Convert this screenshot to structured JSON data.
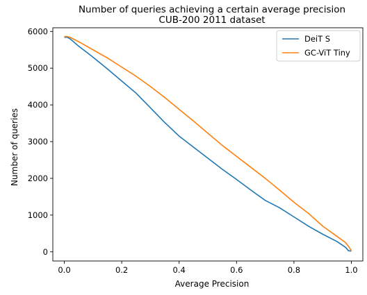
{
  "chart_data": {
    "type": "line",
    "title": "Number of queries achieving a certain average precision",
    "subtitle": "CUB-200 2011 dataset",
    "xlabel": "Average Precision",
    "ylabel": "Number of queries",
    "xlim": [
      -0.04,
      1.04
    ],
    "ylim": [
      -250,
      6100
    ],
    "xticks": [
      0.0,
      0.2,
      0.4,
      0.6,
      0.8,
      1.0
    ],
    "xtick_labels": [
      "0.0",
      "0.2",
      "0.4",
      "0.6",
      "0.8",
      "1.0"
    ],
    "yticks": [
      0,
      1000,
      2000,
      3000,
      4000,
      5000,
      6000
    ],
    "ytick_labels": [
      "0",
      "1000",
      "2000",
      "3000",
      "4000",
      "5000",
      "6000"
    ],
    "grid": false,
    "legend_position": "top-right",
    "series": [
      {
        "name": "DeiT S",
        "color": "#1f77b4",
        "x": [
          0.0,
          0.01,
          0.02,
          0.05,
          0.1,
          0.15,
          0.2,
          0.25,
          0.3,
          0.35,
          0.4,
          0.45,
          0.5,
          0.55,
          0.6,
          0.65,
          0.7,
          0.75,
          0.8,
          0.85,
          0.9,
          0.95,
          0.98,
          0.99,
          1.0
        ],
        "y": [
          5840,
          5840,
          5800,
          5600,
          5300,
          4980,
          4650,
          4320,
          3920,
          3520,
          3150,
          2850,
          2550,
          2250,
          1970,
          1680,
          1400,
          1200,
          950,
          700,
          480,
          280,
          120,
          30,
          20
        ]
      },
      {
        "name": "GC-ViT Tiny",
        "color": "#ff7f0e",
        "x": [
          0.0,
          0.01,
          0.02,
          0.05,
          0.1,
          0.15,
          0.2,
          0.25,
          0.3,
          0.35,
          0.4,
          0.45,
          0.5,
          0.55,
          0.6,
          0.65,
          0.7,
          0.75,
          0.8,
          0.85,
          0.9,
          0.95,
          0.98,
          0.99,
          1.0
        ],
        "y": [
          5860,
          5860,
          5840,
          5720,
          5500,
          5280,
          5030,
          4780,
          4500,
          4200,
          3880,
          3560,
          3230,
          2900,
          2600,
          2300,
          2000,
          1680,
          1350,
          1050,
          700,
          420,
          250,
          150,
          30
        ]
      }
    ]
  }
}
